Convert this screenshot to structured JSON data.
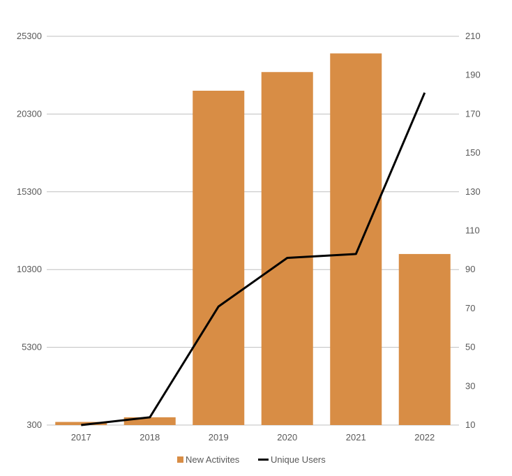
{
  "chart_data": {
    "type": "bar",
    "categories": [
      "2017",
      "2018",
      "2019",
      "2020",
      "2021",
      "2022"
    ],
    "series": [
      {
        "name": "New Activites",
        "type": "bar",
        "axis": "left",
        "color": "#D88D45",
        "values": [
          500,
          800,
          21800,
          23000,
          24200,
          11300
        ]
      },
      {
        "name": "Unique Users",
        "type": "line",
        "axis": "right",
        "color": "#000000",
        "values": [
          10,
          14,
          71,
          96,
          98,
          181
        ]
      }
    ],
    "y_left": {
      "ylim": [
        300,
        25300
      ],
      "ticks": [
        "300",
        "5300",
        "10300",
        "15300",
        "20300",
        "25300"
      ]
    },
    "y_right": {
      "ylim": [
        10,
        210
      ],
      "ticks": [
        "10",
        "30",
        "50",
        "70",
        "90",
        "110",
        "130",
        "150",
        "170",
        "190",
        "210"
      ]
    },
    "grid": true,
    "legend_position": "bottom"
  }
}
